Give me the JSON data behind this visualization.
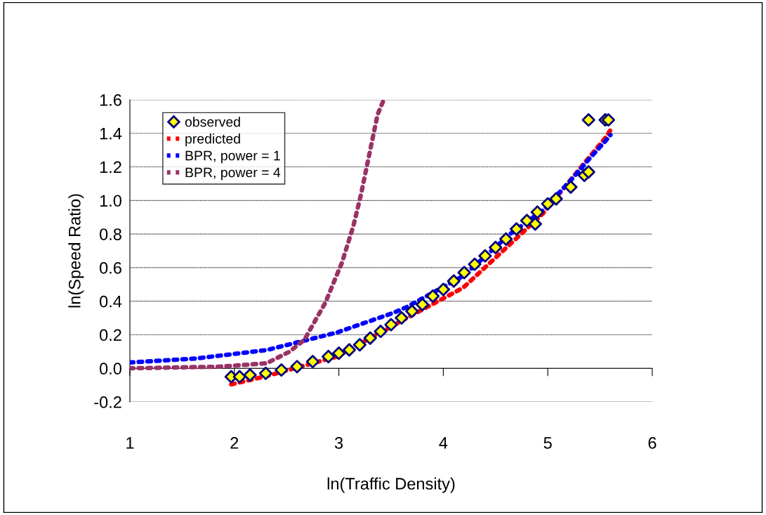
{
  "chart_data": {
    "type": "scatter",
    "xlabel": "ln(Traffic Density)",
    "ylabel": "ln(Speed Ratio)",
    "xlim": [
      1,
      6
    ],
    "xticks": [
      1,
      2,
      3,
      4,
      5,
      6
    ],
    "ylim": [
      -0.2,
      1.6
    ],
    "yticks": [
      {
        "value": -0.2,
        "label": "-0.2"
      },
      {
        "value": 0,
        "label": "0.0"
      },
      {
        "value": 0.2,
        "label": "0.2"
      },
      {
        "value": 0.4,
        "label": "0.4"
      },
      {
        "value": 0.6,
        "label": "0.6"
      },
      {
        "value": 0.8,
        "label": "0.8"
      },
      {
        "value": 1.0,
        "label": "1.0"
      },
      {
        "value": 1.2,
        "label": "1.2"
      },
      {
        "value": 1.4,
        "label": "1.4"
      },
      {
        "value": 1.6,
        "label": "1.6"
      }
    ],
    "grid": "y",
    "legend": "top left",
    "series": [
      {
        "name": "observed",
        "marker": "diamond",
        "color": "#ffff00",
        "x": [
          1.97,
          2.05,
          2.15,
          2.3,
          2.45,
          2.6,
          2.75,
          2.9,
          3.0,
          3.1,
          3.2,
          3.3,
          3.4,
          3.5,
          3.6,
          3.7,
          3.8,
          3.9,
          4.0,
          4.1,
          4.2,
          4.3,
          4.4,
          4.5,
          4.6,
          4.7,
          4.8,
          4.88,
          4.9,
          5.0,
          5.08,
          5.22,
          5.35,
          5.39,
          5.39,
          5.55,
          5.58
        ],
        "values": [
          -0.05,
          -0.05,
          -0.04,
          -0.03,
          -0.01,
          0.01,
          0.04,
          0.07,
          0.09,
          0.11,
          0.14,
          0.18,
          0.22,
          0.26,
          0.3,
          0.34,
          0.38,
          0.43,
          0.47,
          0.52,
          0.57,
          0.62,
          0.67,
          0.72,
          0.77,
          0.83,
          0.88,
          0.86,
          0.93,
          0.98,
          1.01,
          1.08,
          1.15,
          1.17,
          1.48,
          1.48,
          1.48
        ]
      },
      {
        "name": "predicted",
        "type": "line",
        "line_style": "dashed",
        "color": "#ff0000",
        "x": [
          1.97,
          2.31,
          2.98,
          3.52,
          3.65,
          4.19,
          4.64,
          4.95,
          5.4,
          5.56,
          5.6
        ],
        "values": [
          -0.096,
          -0.046,
          0.07,
          0.255,
          0.3,
          0.48,
          0.74,
          0.92,
          1.26,
          1.38,
          1.42
        ]
      },
      {
        "name": "BPR, power = 1",
        "type": "line",
        "line_style": "dashed",
        "color": "#0000ff",
        "x": [
          1.0,
          1.64,
          2.31,
          2.98,
          3.52,
          3.65,
          4.19,
          4.64,
          4.95,
          5.22,
          5.4,
          5.56,
          5.6
        ],
        "values": [
          0.035,
          0.059,
          0.109,
          0.213,
          0.33,
          0.365,
          0.55,
          0.8,
          0.94,
          1.12,
          1.25,
          1.36,
          1.39
        ]
      },
      {
        "name": "BPR, power = 4",
        "type": "line",
        "line_style": "dashed",
        "color": "#993366",
        "x": [
          1.0,
          1.86,
          2.31,
          2.53,
          2.67,
          2.87,
          3.03,
          3.14,
          3.21,
          3.3,
          3.37,
          3.43
        ],
        "values": [
          0.0,
          0.01,
          0.03,
          0.1,
          0.17,
          0.39,
          0.63,
          0.85,
          1.03,
          1.3,
          1.51,
          1.6
        ]
      }
    ]
  }
}
